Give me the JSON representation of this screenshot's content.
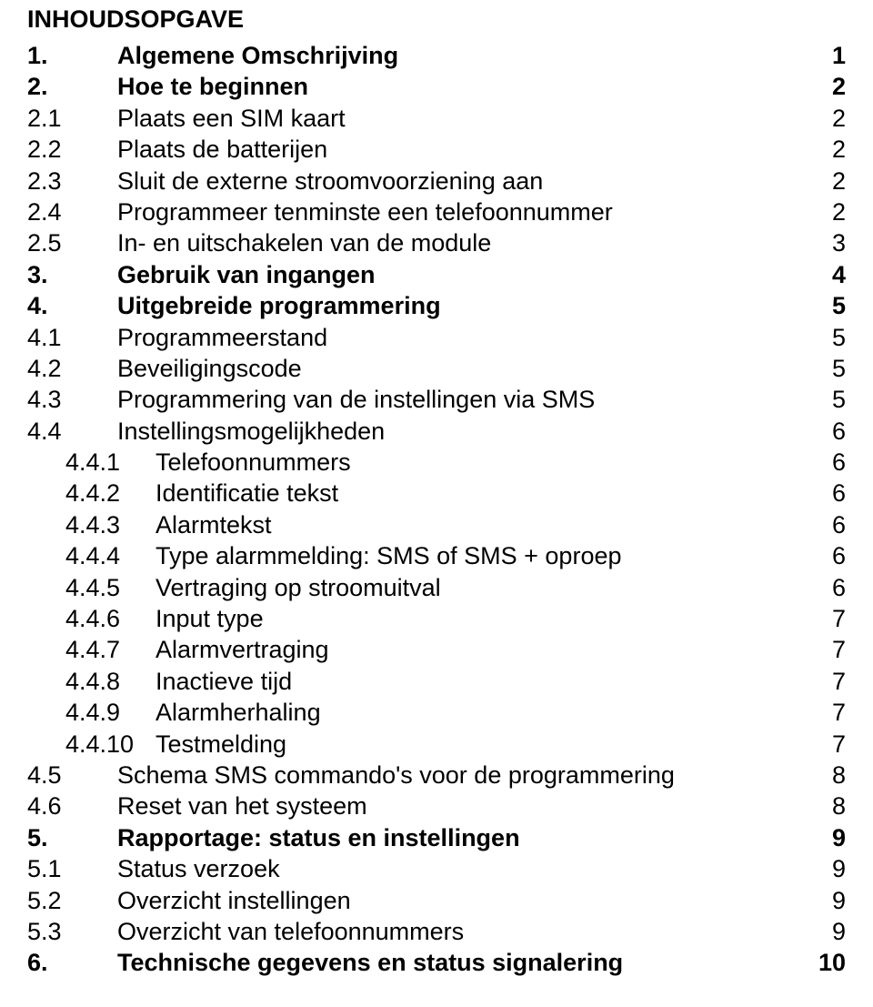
{
  "title": "INHOUDSOPGAVE",
  "entries": [
    {
      "indent": 0,
      "num": "1.",
      "text": "Algemene Omschrijving",
      "page": "1",
      "bold": true
    },
    {
      "indent": 0,
      "num": "2.",
      "text": "Hoe te beginnen",
      "page": "2",
      "bold": true
    },
    {
      "indent": 1,
      "num": "2.1",
      "text": "Plaats een SIM kaart",
      "page": "2",
      "bold": false
    },
    {
      "indent": 1,
      "num": "2.2",
      "text": "Plaats de batterijen",
      "page": "2",
      "bold": false
    },
    {
      "indent": 1,
      "num": "2.3",
      "text": "Sluit de externe stroomvoorziening aan",
      "page": "2",
      "bold": false
    },
    {
      "indent": 1,
      "num": "2.4",
      "text": "Programmeer tenminste een telefoonnummer",
      "page": "2",
      "bold": false
    },
    {
      "indent": 1,
      "num": "2.5",
      "text": "In- en uitschakelen van de module",
      "page": "3",
      "bold": false
    },
    {
      "indent": 0,
      "num": "3.",
      "text": "Gebruik van ingangen",
      "page": "4",
      "bold": true
    },
    {
      "indent": 0,
      "num": "4.",
      "text": "Uitgebreide programmering",
      "page": "5",
      "bold": true
    },
    {
      "indent": 1,
      "num": "4.1",
      "text": "Programmeerstand",
      "page": "5",
      "bold": false
    },
    {
      "indent": 1,
      "num": "4.2",
      "text": "Beveiligingscode",
      "page": "5",
      "bold": false
    },
    {
      "indent": 1,
      "num": "4.3",
      "text": "Programmering van de instellingen via SMS",
      "page": "5",
      "bold": false
    },
    {
      "indent": 1,
      "num": "4.4",
      "text": "Instellingsmogelijkheden",
      "page": "6",
      "bold": false
    },
    {
      "indent": 2,
      "num": "4.4.1",
      "text": "Telefoonnummers",
      "page": "6",
      "bold": false
    },
    {
      "indent": 2,
      "num": "4.4.2",
      "text": "Identificatie tekst",
      "page": "6",
      "bold": false
    },
    {
      "indent": 2,
      "num": "4.4.3",
      "text": "Alarmtekst",
      "page": "6",
      "bold": false
    },
    {
      "indent": 2,
      "num": "4.4.4",
      "text": "Type alarmmelding: SMS of SMS + oproep",
      "page": "6",
      "bold": false
    },
    {
      "indent": 2,
      "num": "4.4.5",
      "text": "Vertraging op stroomuitval",
      "page": "6",
      "bold": false
    },
    {
      "indent": 2,
      "num": "4.4.6",
      "text": "Input type",
      "page": "7",
      "bold": false
    },
    {
      "indent": 2,
      "num": "4.4.7",
      "text": "Alarmvertraging",
      "page": "7",
      "bold": false
    },
    {
      "indent": 2,
      "num": "4.4.8",
      "text": "Inactieve tijd",
      "page": "7",
      "bold": false
    },
    {
      "indent": 2,
      "num": "4.4.9",
      "text": "Alarmherhaling",
      "page": "7",
      "bold": false
    },
    {
      "indent": 2,
      "num": "4.4.10",
      "text": "Testmelding",
      "page": "7",
      "bold": false
    },
    {
      "indent": 1,
      "num": "4.5",
      "text": "Schema SMS commando's voor de programmering",
      "page": "8",
      "bold": false
    },
    {
      "indent": 1,
      "num": "4.6",
      "text": "Reset van het systeem",
      "page": "8",
      "bold": false
    },
    {
      "indent": 0,
      "num": "5.",
      "text": "Rapportage: status en instellingen",
      "page": "9",
      "bold": true
    },
    {
      "indent": 1,
      "num": "5.1",
      "text": "Status verzoek",
      "page": "9",
      "bold": false
    },
    {
      "indent": 1,
      "num": "5.2",
      "text": "Overzicht instellingen",
      "page": "9",
      "bold": false
    },
    {
      "indent": 1,
      "num": "5.3",
      "text": "Overzicht van telefoonnummers",
      "page": "9",
      "bold": false
    },
    {
      "indent": 0,
      "num": "6.",
      "text": "Technische gegevens en status signalering",
      "page": "10",
      "bold": true
    }
  ]
}
